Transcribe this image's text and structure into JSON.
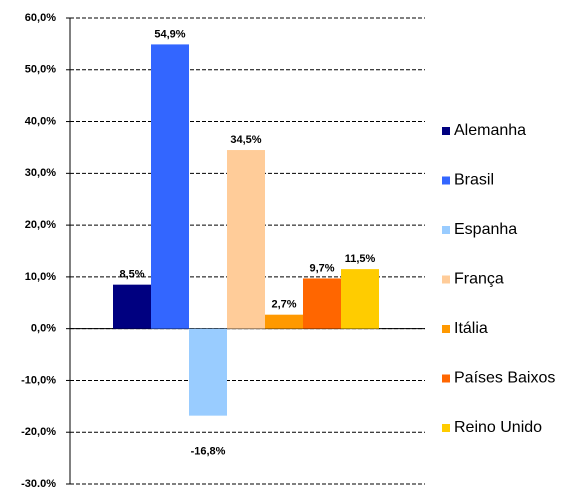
{
  "chart_data": {
    "type": "bar",
    "series": [
      {
        "name": "Alemanha",
        "color": "#000080",
        "values": [
          8.5
        ],
        "value_labels": [
          "8,5%"
        ]
      },
      {
        "name": "Brasil",
        "color": "#3366ff",
        "values": [
          54.9
        ],
        "value_labels": [
          "54,9%"
        ]
      },
      {
        "name": "Espanha",
        "color": "#99ccff",
        "values": [
          -16.8
        ],
        "value_labels": [
          "-16,8%"
        ]
      },
      {
        "name": "França",
        "color": "#ffcc99",
        "values": [
          34.5
        ],
        "value_labels": [
          "34,5%"
        ]
      },
      {
        "name": "Itália",
        "color": "#ff9900",
        "values": [
          2.7
        ],
        "value_labels": [
          "2,7%"
        ]
      },
      {
        "name": "Países Baixos",
        "color": "#ff6600",
        "values": [
          9.7
        ],
        "value_labels": [
          "9,7%"
        ]
      },
      {
        "name": "Reino Unido",
        "color": "#ffcc00",
        "values": [
          11.5
        ],
        "value_labels": [
          "11,5%"
        ]
      }
    ],
    "ylim": [
      -30,
      60
    ],
    "yticks": [
      {
        "value": -30,
        "label": "-30.0%"
      },
      {
        "value": -20,
        "label": "-20,0%"
      },
      {
        "value": -10,
        "label": "-10,0%"
      },
      {
        "value": 0,
        "label": "0,0%"
      },
      {
        "value": 10,
        "label": "10,0%"
      },
      {
        "value": 20,
        "label": "20,0%"
      },
      {
        "value": 30,
        "label": "30,0%"
      },
      {
        "value": 40,
        "label": "40,0%"
      },
      {
        "value": 50,
        "label": "50,0%"
      },
      {
        "value": 60,
        "label": "60,0%"
      }
    ],
    "grid": true,
    "legend": "right"
  }
}
